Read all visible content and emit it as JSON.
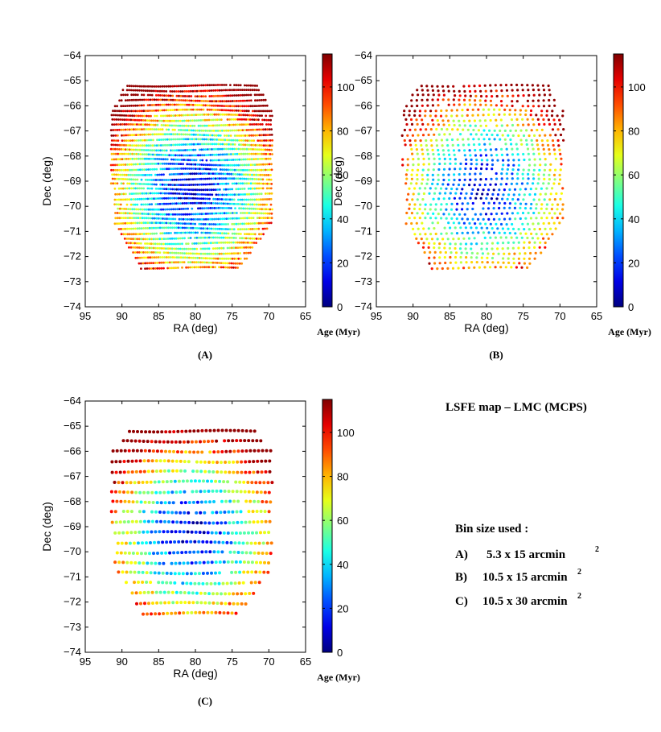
{
  "chart_data": [
    {
      "type": "scatter",
      "panel_label": "(A)",
      "bin_rows": 38,
      "xlabel": "RA (deg)",
      "ylabel": "Dec (deg)",
      "xlim": [
        95,
        65
      ],
      "ylim": [
        -74,
        -64
      ],
      "xticks": [
        "95",
        "90",
        "85",
        "80",
        "75",
        "70",
        "65"
      ],
      "yticks": [
        "-64",
        "-65",
        "-66",
        "-67",
        "-68",
        "-69",
        "-70",
        "-71",
        "-72",
        "-73",
        "-74"
      ],
      "colorbar": {
        "label": "Age (Myr)",
        "range": [
          0,
          115
        ],
        "ticks": [
          "0",
          "20",
          "40",
          "60",
          "80",
          "100"
        ]
      },
      "marker_size": 1.4
    },
    {
      "type": "scatter",
      "panel_label": "(B)",
      "bin_rows": 38,
      "col_spacing_deg": 0.72,
      "xlabel": "RA (deg)",
      "ylabel": "Dec (deg)",
      "xlim": [
        95,
        65
      ],
      "ylim": [
        -74,
        -64
      ],
      "xticks": [
        "95",
        "90",
        "85",
        "80",
        "75",
        "70",
        "65"
      ],
      "yticks": [
        "-64",
        "-65",
        "-66",
        "-67",
        "-68",
        "-69",
        "-70",
        "-71",
        "-72",
        "-73",
        "-74"
      ],
      "colorbar": {
        "label": "Age (Myr)",
        "range": [
          0,
          115
        ],
        "ticks": [
          "0",
          "20",
          "40",
          "60",
          "80",
          "100"
        ]
      },
      "marker_size": 1.6
    },
    {
      "type": "scatter",
      "panel_label": "(C)",
      "bin_rows": 19,
      "xlabel": "RA (deg)",
      "ylabel": "Dec (deg)",
      "xlim": [
        95,
        65
      ],
      "ylim": [
        -74,
        -64
      ],
      "xticks": [
        "95",
        "90",
        "85",
        "80",
        "75",
        "70",
        "65"
      ],
      "yticks": [
        "-64",
        "-65",
        "-66",
        "-67",
        "-68",
        "-69",
        "-70",
        "-71",
        "-72",
        "-73",
        "-74"
      ],
      "colorbar": {
        "label": "Age (Myr)",
        "range": [
          0,
          115
        ],
        "ticks": [
          "0",
          "20",
          "40",
          "60",
          "80",
          "100"
        ]
      },
      "marker_size": 2.0
    }
  ],
  "side_panel": {
    "title": "LSFE map – LMC (MCPS)",
    "bin_heading": "Bin size used :",
    "bins": [
      {
        "label": "A)",
        "value": "5.3 x 15 arcmin",
        "sup": "2"
      },
      {
        "label": "B)",
        "value": "10.5 x 15 arcmin",
        "sup": "2"
      },
      {
        "label": "C)",
        "value": "10.5 x 30 arcmin",
        "sup": "2"
      }
    ]
  }
}
